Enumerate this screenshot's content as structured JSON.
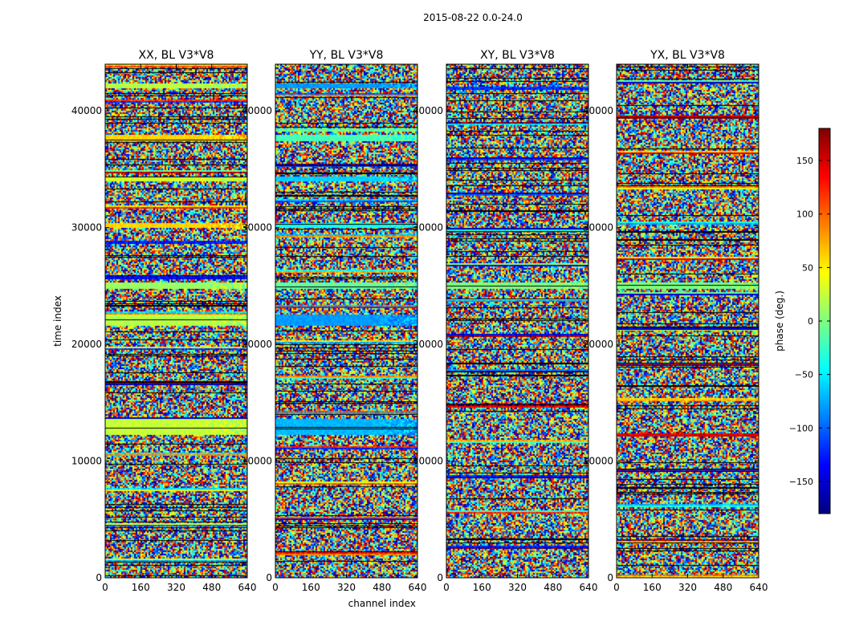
{
  "figure": {
    "suptitle": "2015-08-22 0.0-24.0"
  },
  "chart_data": [
    {
      "type": "heatmap",
      "title": "XX, BL V3*V8",
      "xlabel": "",
      "ylabel": "time index",
      "xlim": [
        0,
        640
      ],
      "ylim": [
        0,
        44000
      ],
      "xticks": [
        "0",
        "160",
        "320",
        "480",
        "640"
      ],
      "yticks": [
        "0",
        "10000",
        "20000",
        "30000",
        "40000"
      ],
      "quantity": "phase (deg.)",
      "coherent_bands": [
        [
          12300,
          13700,
          25
        ],
        [
          21600,
          22600,
          20
        ],
        [
          24800,
          25400,
          10
        ],
        [
          30100,
          30500,
          60
        ],
        [
          34000,
          34500,
          30
        ],
        [
          37500,
          38000,
          60
        ],
        [
          42000,
          42400,
          20
        ]
      ]
    },
    {
      "type": "heatmap",
      "title": "YY, BL V3*V8",
      "xlabel": "channel index",
      "ylabel": "",
      "xlim": [
        0,
        640
      ],
      "ylim": [
        0,
        44000
      ],
      "xticks": [
        "0",
        "160",
        "320",
        "480",
        "640"
      ],
      "yticks": [
        "0",
        "10000",
        "20000",
        "30000",
        "40000"
      ],
      "quantity": "phase (deg.)",
      "coherent_bands": [
        [
          12300,
          13700,
          -70
        ],
        [
          21600,
          22600,
          -80
        ],
        [
          24800,
          25400,
          -10
        ],
        [
          30100,
          30500,
          -40
        ],
        [
          34000,
          34500,
          -60
        ],
        [
          37500,
          38000,
          -20
        ],
        [
          42000,
          42400,
          -80
        ]
      ]
    },
    {
      "type": "heatmap",
      "title": "XY, BL V3*V8",
      "xlabel": "",
      "ylabel": "",
      "xlim": [
        0,
        640
      ],
      "ylim": [
        0,
        44000
      ],
      "xticks": [
        "0",
        "160",
        "320",
        "480",
        "640"
      ],
      "yticks": [
        "0",
        "10000",
        "20000",
        "30000",
        "40000"
      ],
      "quantity": "phase (deg.)",
      "coherent_bands": [
        [
          24800,
          25400,
          0
        ]
      ]
    },
    {
      "type": "heatmap",
      "title": "YX, BL V3*V8",
      "xlabel": "",
      "ylabel": "",
      "xlim": [
        0,
        640
      ],
      "ylim": [
        0,
        44000
      ],
      "xticks": [
        "0",
        "160",
        "320",
        "480",
        "640"
      ],
      "yticks": [
        "0",
        "10000",
        "20000",
        "30000",
        "40000"
      ],
      "quantity": "phase (deg.)",
      "coherent_bands": [
        [
          24800,
          25400,
          0
        ]
      ]
    }
  ],
  "colorbar": {
    "label": "phase (deg.)",
    "range": [
      -180,
      180
    ],
    "ticks": [
      "150",
      "100",
      "50",
      "0",
      "−50",
      "−100",
      "−150"
    ],
    "tick_values": [
      150,
      100,
      50,
      0,
      -50,
      -100,
      -150
    ],
    "colormap": "jet",
    "colors": [
      "#00007f",
      "#0000ff",
      "#007fff",
      "#00ffff",
      "#7fff7f",
      "#ffff00",
      "#ff7f00",
      "#ff0000",
      "#7f0000"
    ]
  }
}
